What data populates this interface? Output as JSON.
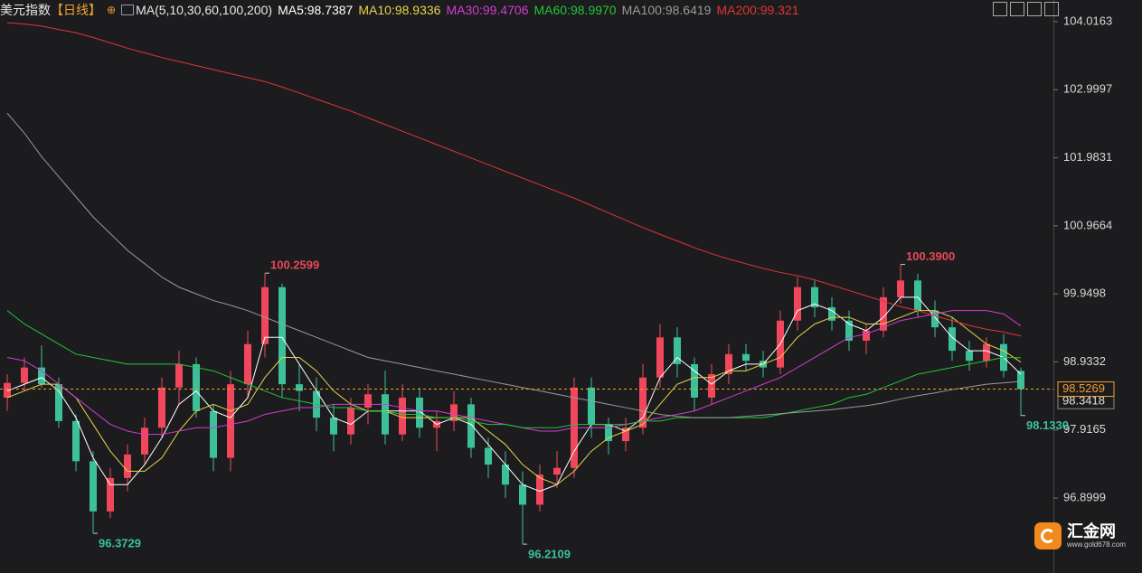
{
  "chart_data": {
    "type": "candlestick",
    "title": "美元指数",
    "period": "【日线】",
    "ma_spec": "MA(5,10,30,60,100,200)",
    "ylim": [
      95.78,
      104.34
    ],
    "yticks": [
      104.0163,
      102.9997,
      101.9831,
      100.9664,
      99.9498,
      98.9332,
      97.9165,
      96.8999
    ],
    "up_color": "#f0475c",
    "down_color": "#3cc09a",
    "candles": [
      [
        98.4,
        98.75,
        98.2,
        98.62
      ],
      [
        98.62,
        99.0,
        98.5,
        98.85
      ],
      [
        98.85,
        99.18,
        98.55,
        98.6
      ],
      [
        98.6,
        98.7,
        97.95,
        98.05
      ],
      [
        98.05,
        98.15,
        97.3,
        97.45
      ],
      [
        97.45,
        97.6,
        96.3729,
        96.7
      ],
      [
        96.7,
        97.35,
        96.6,
        97.2
      ],
      [
        97.2,
        97.7,
        97.0,
        97.55
      ],
      [
        97.55,
        98.1,
        97.4,
        97.95
      ],
      [
        97.95,
        98.7,
        97.8,
        98.55
      ],
      [
        98.55,
        99.1,
        98.3,
        98.9
      ],
      [
        98.9,
        99.0,
        98.1,
        98.2
      ],
      [
        98.2,
        98.3,
        97.3,
        97.5
      ],
      [
        97.5,
        98.8,
        97.3,
        98.6
      ],
      [
        98.6,
        99.4,
        98.4,
        99.2
      ],
      [
        99.2,
        100.2599,
        99.0,
        100.05
      ],
      [
        100.05,
        100.1,
        98.4,
        98.6
      ],
      [
        98.6,
        98.9,
        98.2,
        98.5
      ],
      [
        98.5,
        98.7,
        97.9,
        98.1
      ],
      [
        98.1,
        98.3,
        97.6,
        97.85
      ],
      [
        97.85,
        98.4,
        97.7,
        98.25
      ],
      [
        98.25,
        98.6,
        98.0,
        98.45
      ],
      [
        98.45,
        98.8,
        97.7,
        97.85
      ],
      [
        97.85,
        98.6,
        97.75,
        98.4
      ],
      [
        98.4,
        98.55,
        97.8,
        97.95
      ],
      [
        97.95,
        98.2,
        97.6,
        98.05
      ],
      [
        98.05,
        98.5,
        97.9,
        98.3
      ],
      [
        98.3,
        98.4,
        97.5,
        97.65
      ],
      [
        97.65,
        97.8,
        97.2,
        97.4
      ],
      [
        97.4,
        97.6,
        96.9,
        97.1
      ],
      [
        97.1,
        97.3,
        96.2109,
        96.8
      ],
      [
        96.8,
        97.4,
        96.7,
        97.25
      ],
      [
        97.25,
        97.6,
        97.05,
        97.35
      ],
      [
        97.35,
        98.7,
        97.2,
        98.55
      ],
      [
        98.55,
        98.7,
        97.8,
        98.0
      ],
      [
        98.0,
        98.1,
        97.55,
        97.75
      ],
      [
        97.75,
        98.1,
        97.6,
        97.95
      ],
      [
        97.95,
        98.9,
        97.85,
        98.7
      ],
      [
        98.7,
        99.5,
        98.55,
        99.3
      ],
      [
        99.3,
        99.45,
        98.7,
        98.9
      ],
      [
        98.9,
        99.0,
        98.2,
        98.4
      ],
      [
        98.4,
        98.9,
        98.3,
        98.75
      ],
      [
        98.75,
        99.2,
        98.6,
        99.05
      ],
      [
        99.05,
        99.2,
        98.8,
        98.95
      ],
      [
        98.95,
        99.1,
        98.7,
        98.85
      ],
      [
        98.85,
        99.7,
        98.75,
        99.55
      ],
      [
        99.55,
        100.2,
        99.4,
        100.05
      ],
      [
        100.05,
        100.15,
        99.6,
        99.75
      ],
      [
        99.75,
        99.9,
        99.4,
        99.55
      ],
      [
        99.55,
        99.7,
        99.1,
        99.25
      ],
      [
        99.25,
        99.5,
        99.05,
        99.4
      ],
      [
        99.4,
        100.05,
        99.3,
        99.9
      ],
      [
        99.9,
        100.39,
        99.8,
        100.15
      ],
      [
        100.15,
        100.25,
        99.6,
        99.7
      ],
      [
        99.7,
        99.85,
        99.3,
        99.45
      ],
      [
        99.45,
        99.6,
        98.95,
        99.1
      ],
      [
        99.1,
        99.25,
        98.8,
        98.95
      ],
      [
        98.95,
        99.3,
        98.85,
        99.2
      ],
      [
        99.2,
        99.35,
        98.7,
        98.8
      ],
      [
        98.8,
        98.85,
        98.133,
        98.5269
      ]
    ],
    "series": [
      {
        "name": "MA5",
        "label": "MA5:98.7387",
        "color": "#ffffff",
        "values": [
          98.5,
          98.6,
          98.7,
          98.5,
          98.1,
          97.5,
          97.1,
          97.1,
          97.4,
          97.8,
          98.3,
          98.5,
          98.2,
          98.1,
          98.4,
          99.3,
          99.3,
          98.9,
          98.5,
          98.1,
          98.0,
          98.2,
          98.2,
          98.2,
          98.2,
          98.0,
          98.1,
          98.0,
          97.7,
          97.4,
          97.1,
          97.0,
          97.1,
          97.6,
          98.0,
          98.0,
          97.9,
          98.1,
          98.7,
          99.0,
          98.8,
          98.6,
          98.8,
          98.9,
          98.9,
          99.2,
          99.7,
          99.8,
          99.7,
          99.5,
          99.4,
          99.6,
          99.9,
          99.9,
          99.6,
          99.3,
          99.1,
          99.1,
          99.0,
          98.75
        ]
      },
      {
        "name": "MA10",
        "label": "MA10:98.9336",
        "color": "#e6d44a",
        "values": [
          98.4,
          98.5,
          98.6,
          98.6,
          98.4,
          98.0,
          97.6,
          97.3,
          97.3,
          97.5,
          97.9,
          98.2,
          98.3,
          98.2,
          98.3,
          98.7,
          99.0,
          99.0,
          98.8,
          98.5,
          98.3,
          98.2,
          98.2,
          98.1,
          98.1,
          98.1,
          98.1,
          98.1,
          97.9,
          97.7,
          97.4,
          97.2,
          97.1,
          97.3,
          97.6,
          97.8,
          97.9,
          98.0,
          98.3,
          98.6,
          98.7,
          98.7,
          98.8,
          98.8,
          98.9,
          99.0,
          99.3,
          99.5,
          99.6,
          99.6,
          99.5,
          99.5,
          99.6,
          99.7,
          99.7,
          99.6,
          99.4,
          99.2,
          99.1,
          98.93
        ]
      },
      {
        "name": "MA30",
        "label": "MA30:99.4706",
        "color": "#d23cd2",
        "values": [
          99.0,
          98.95,
          98.8,
          98.6,
          98.4,
          98.2,
          98.0,
          97.9,
          97.85,
          97.85,
          97.9,
          97.95,
          97.95,
          98.0,
          98.05,
          98.15,
          98.2,
          98.25,
          98.25,
          98.3,
          98.3,
          98.3,
          98.3,
          98.25,
          98.2,
          98.2,
          98.15,
          98.1,
          98.05,
          98.0,
          97.95,
          97.9,
          97.9,
          97.95,
          97.95,
          97.95,
          98.0,
          98.05,
          98.1,
          98.15,
          98.2,
          98.3,
          98.4,
          98.5,
          98.6,
          98.7,
          98.85,
          99.0,
          99.15,
          99.3,
          99.35,
          99.45,
          99.55,
          99.6,
          99.65,
          99.7,
          99.7,
          99.7,
          99.65,
          99.47
        ]
      },
      {
        "name": "MA60",
        "label": "MA60:98.9970",
        "color": "#22c43a",
        "values": [
          99.7,
          99.5,
          99.35,
          99.2,
          99.05,
          99.0,
          98.95,
          98.9,
          98.9,
          98.9,
          98.9,
          98.85,
          98.8,
          98.7,
          98.6,
          98.5,
          98.4,
          98.35,
          98.3,
          98.25,
          98.25,
          98.2,
          98.2,
          98.15,
          98.15,
          98.1,
          98.1,
          98.05,
          98.0,
          98.0,
          97.95,
          97.95,
          97.95,
          98.0,
          98.0,
          98.0,
          98.0,
          98.05,
          98.05,
          98.1,
          98.1,
          98.1,
          98.1,
          98.1,
          98.1,
          98.15,
          98.2,
          98.25,
          98.3,
          98.4,
          98.45,
          98.55,
          98.65,
          98.75,
          98.8,
          98.85,
          98.9,
          98.95,
          99.0,
          98.997
        ]
      },
      {
        "name": "MA100",
        "label": "MA100:98.6419",
        "color": "#9a9a9a",
        "values": [
          102.65,
          102.35,
          102.0,
          101.7,
          101.4,
          101.1,
          100.85,
          100.6,
          100.4,
          100.2,
          100.05,
          99.95,
          99.85,
          99.78,
          99.7,
          99.6,
          99.5,
          99.4,
          99.3,
          99.2,
          99.1,
          99.0,
          98.95,
          98.9,
          98.85,
          98.8,
          98.75,
          98.7,
          98.65,
          98.6,
          98.55,
          98.5,
          98.45,
          98.4,
          98.35,
          98.3,
          98.25,
          98.2,
          98.15,
          98.12,
          98.1,
          98.1,
          98.1,
          98.12,
          98.14,
          98.16,
          98.18,
          98.2,
          98.22,
          98.25,
          98.28,
          98.32,
          98.38,
          98.43,
          98.47,
          98.52,
          98.56,
          98.6,
          98.62,
          98.6419
        ]
      },
      {
        "name": "MA200",
        "label": "MA200:99.321",
        "color": "#e03434",
        "values": [
          104.0,
          103.98,
          103.95,
          103.9,
          103.85,
          103.78,
          103.7,
          103.62,
          103.55,
          103.48,
          103.42,
          103.36,
          103.3,
          103.24,
          103.18,
          103.12,
          103.04,
          102.95,
          102.86,
          102.77,
          102.68,
          102.58,
          102.48,
          102.38,
          102.28,
          102.18,
          102.08,
          101.98,
          101.88,
          101.78,
          101.68,
          101.58,
          101.48,
          101.38,
          101.27,
          101.16,
          101.05,
          100.94,
          100.84,
          100.74,
          100.64,
          100.55,
          100.47,
          100.4,
          100.33,
          100.27,
          100.22,
          100.16,
          100.08,
          100.0,
          99.92,
          99.84,
          99.76,
          99.7,
          99.62,
          99.55,
          99.48,
          99.42,
          99.38,
          99.321
        ]
      }
    ],
    "annotations": [
      {
        "value": 100.2599,
        "kind": "high"
      },
      {
        "value": 96.3729,
        "kind": "low"
      },
      {
        "value": 96.2109,
        "kind": "low"
      },
      {
        "value": 100.39,
        "label": "100.3900",
        "kind": "high"
      },
      {
        "value": 98.133,
        "label": "98.1330",
        "kind": "low"
      }
    ],
    "price_tags": [
      {
        "value": 98.5269,
        "color": "#f0a030",
        "line": true
      },
      {
        "value": 98.3418,
        "color": "#8a8a8a",
        "line": false
      }
    ],
    "watermark": {
      "name": "汇金网",
      "site": "www.gold678.com"
    }
  }
}
